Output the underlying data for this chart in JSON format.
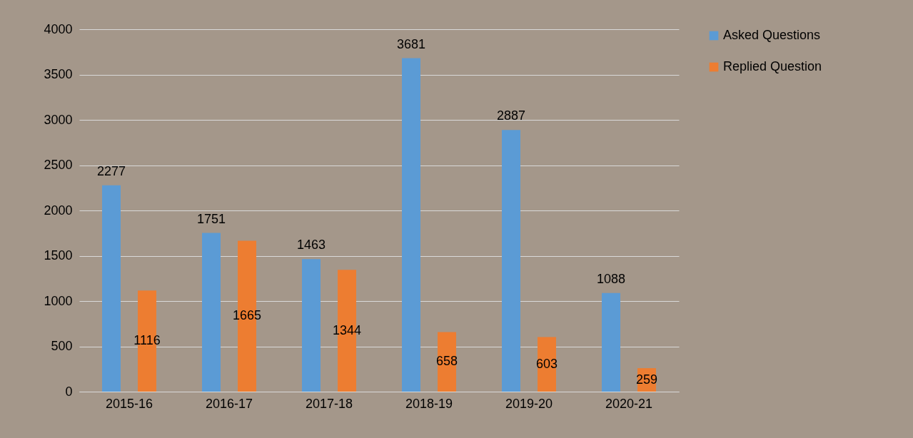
{
  "chart_data": {
    "type": "bar",
    "categories": [
      "2015-16",
      "2016-17",
      "2017-18",
      "2018-19",
      "2019-20",
      "2020-21"
    ],
    "series": [
      {
        "name": "Asked Questions",
        "color": "#5b9bd5",
        "values": [
          2277,
          1751,
          1463,
          3681,
          2887,
          1088
        ]
      },
      {
        "name": "Replied Question",
        "color": "#ed7d31",
        "values": [
          1116,
          1665,
          1344,
          658,
          603,
          259
        ]
      }
    ],
    "ylim": [
      0,
      4000
    ],
    "yticks": [
      0,
      500,
      1000,
      1500,
      2000,
      2500,
      3000,
      3500,
      4000
    ],
    "grid": "y",
    "legend": "right",
    "data_labels": true
  }
}
